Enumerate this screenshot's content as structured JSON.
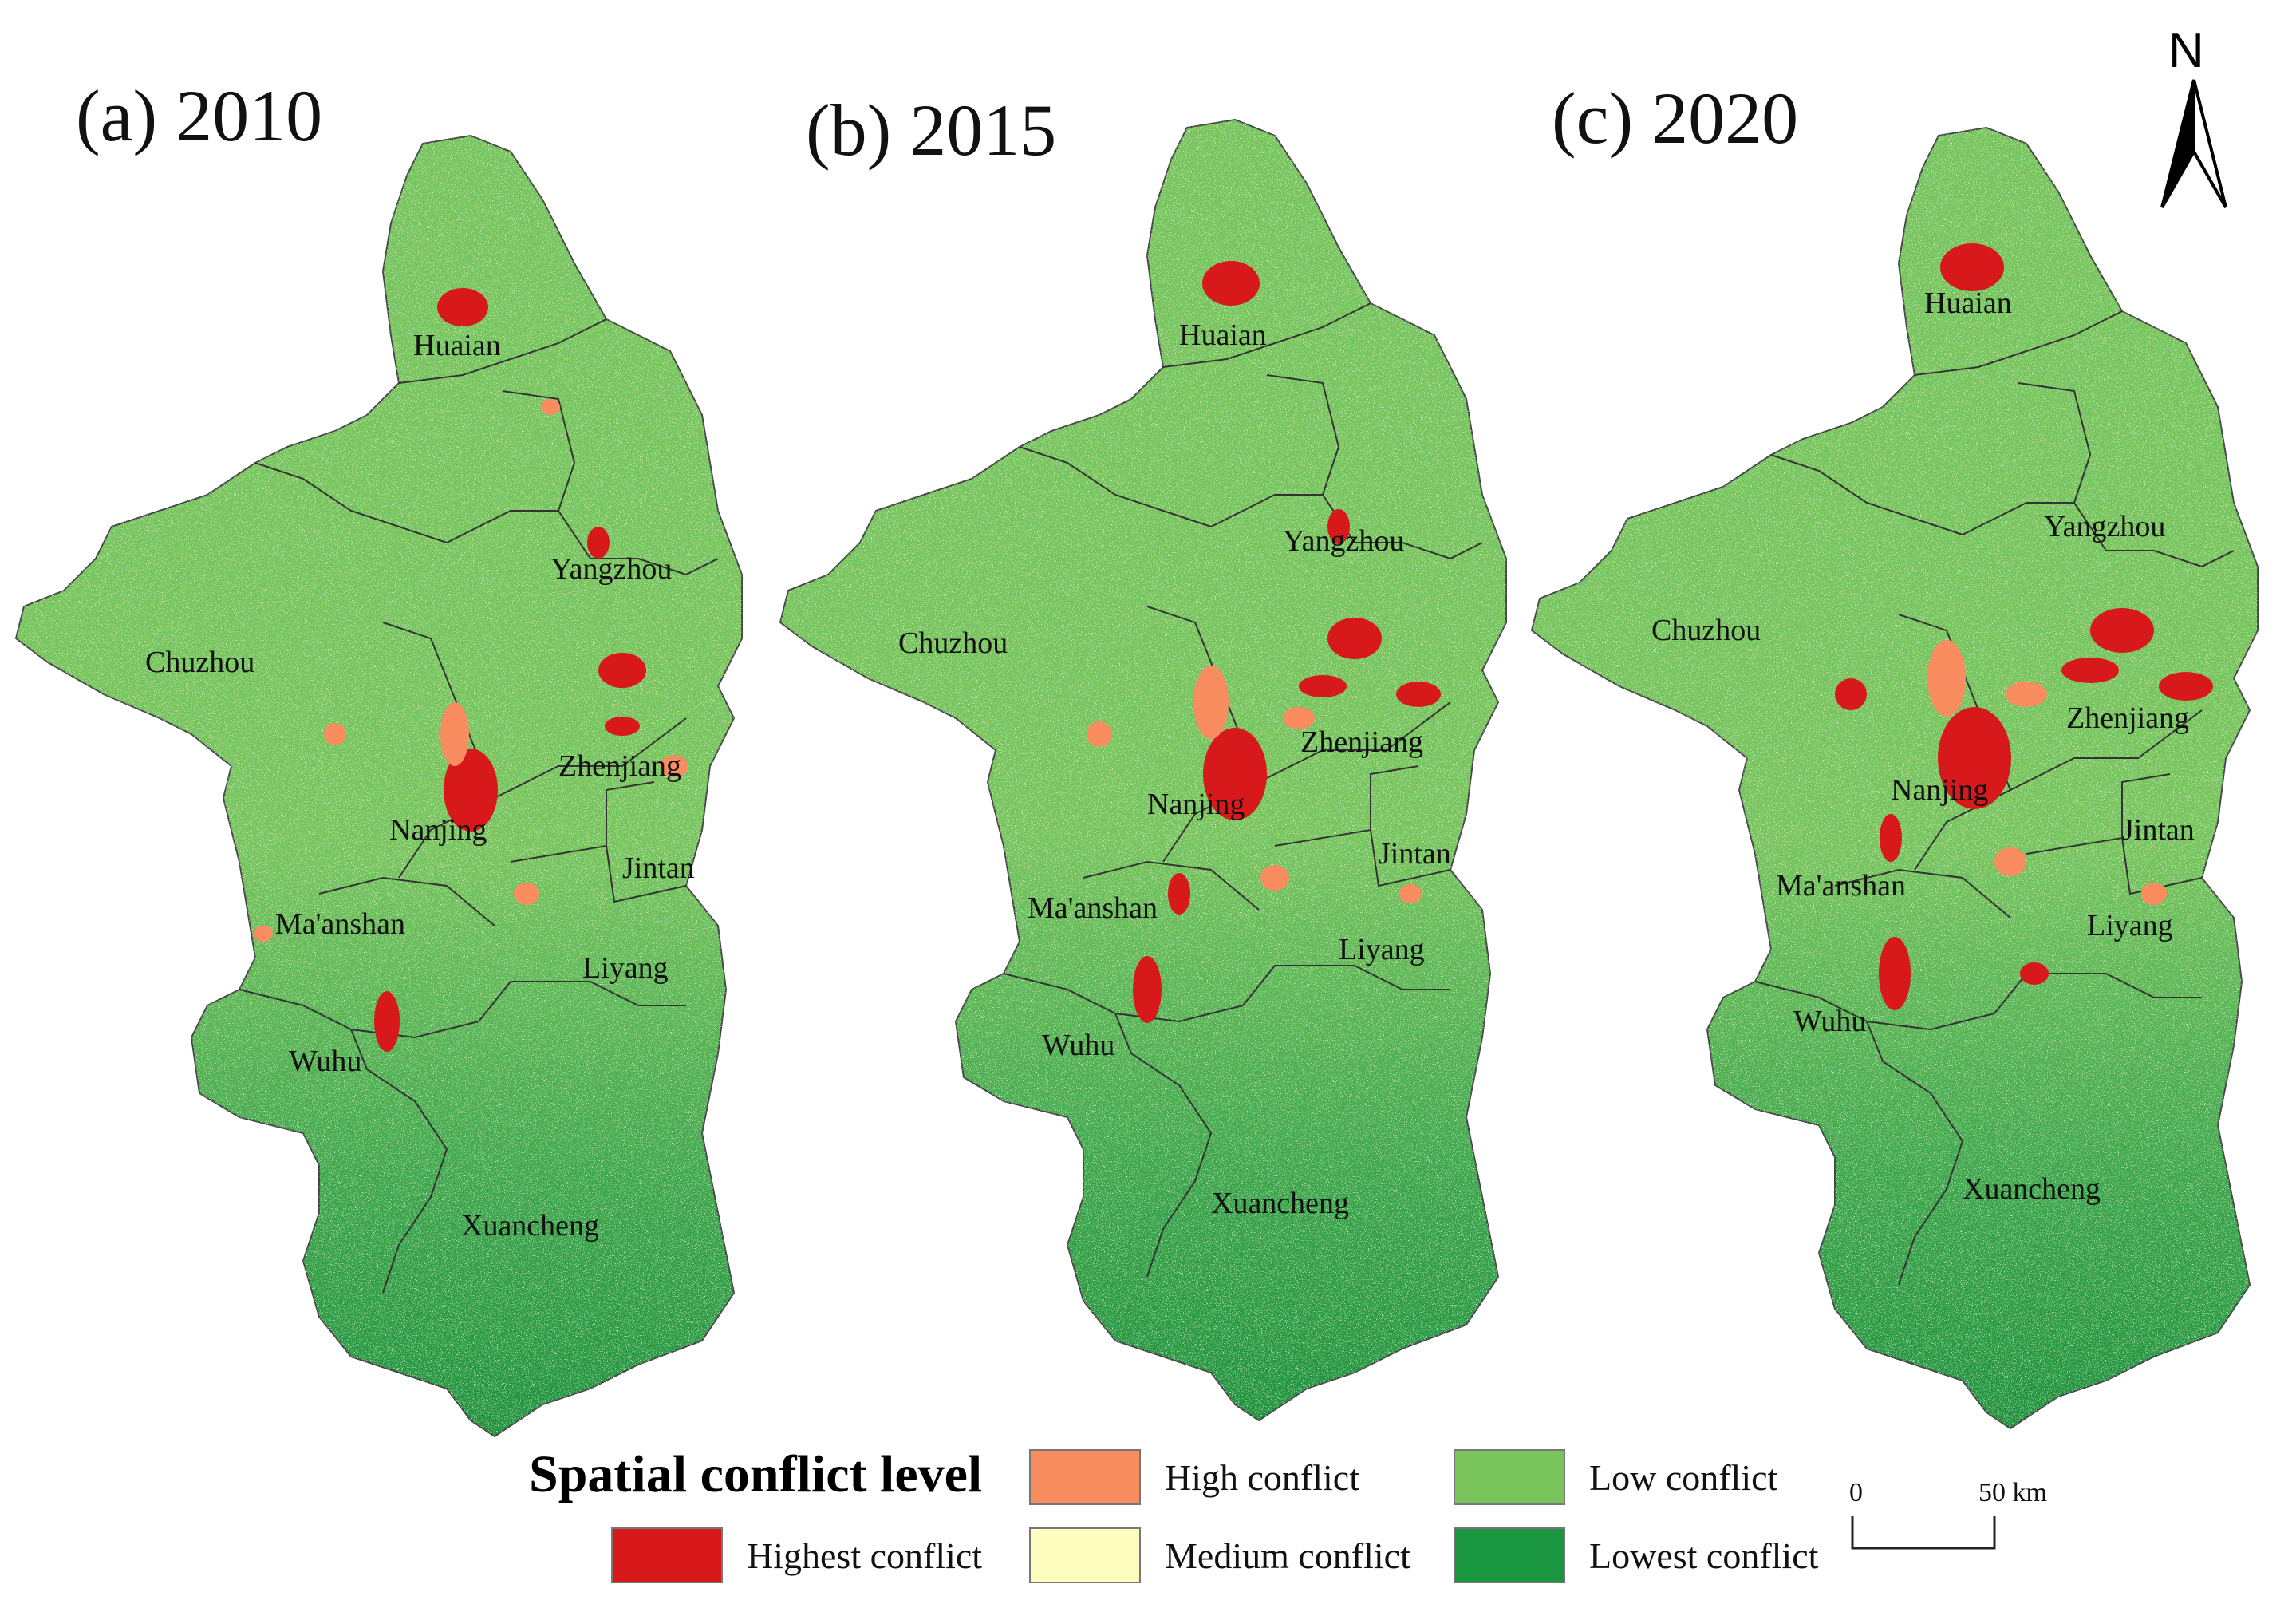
{
  "panels": [
    {
      "id": "a",
      "title": "(a)  2010",
      "cities": [
        "Huaian",
        "Yangzhou",
        "Chuzhou",
        "Zhenjiang",
        "Nanjing",
        "Jintan",
        "Ma'anshan",
        "Liyang",
        "Wuhu",
        "Xuancheng"
      ]
    },
    {
      "id": "b",
      "title": "(b)  2015",
      "cities": [
        "Huaian",
        "Yangzhou",
        "Chuzhou",
        "Zhenjiang",
        "Nanjing",
        "Jintan",
        "Ma'anshan",
        "Liyang",
        "Wuhu",
        "Xuancheng"
      ]
    },
    {
      "id": "c",
      "title": "(c)  2020",
      "cities": [
        "Huaian",
        "Yangzhou",
        "Chuzhou",
        "Zhenjiang",
        "Nanjing",
        "Jintan",
        "Ma'anshan",
        "Liyang",
        "Wuhu",
        "Xuancheng"
      ]
    }
  ],
  "north_arrow": {
    "letter": "N",
    "icon": "north-arrow-icon"
  },
  "legend": {
    "title": "Spatial conflict level",
    "items": [
      {
        "label": "High conflict",
        "color": "#f98d5f"
      },
      {
        "label": "Low conflict",
        "color": "#7ac45c"
      },
      {
        "label": "Highest conflict",
        "color": "#d7191c"
      },
      {
        "label": "Medium conflict",
        "color": "#fdfdc0"
      },
      {
        "label": "Lowest conflict",
        "color": "#1a9641"
      }
    ]
  },
  "scale_bar": {
    "start": "0",
    "end": "50 km"
  },
  "colors": {
    "highest": "#d7191c",
    "high": "#f98d5f",
    "medium": "#fdfdc0",
    "low": "#7ac45c",
    "lowest": "#1a9641",
    "boundary": "#333333"
  }
}
